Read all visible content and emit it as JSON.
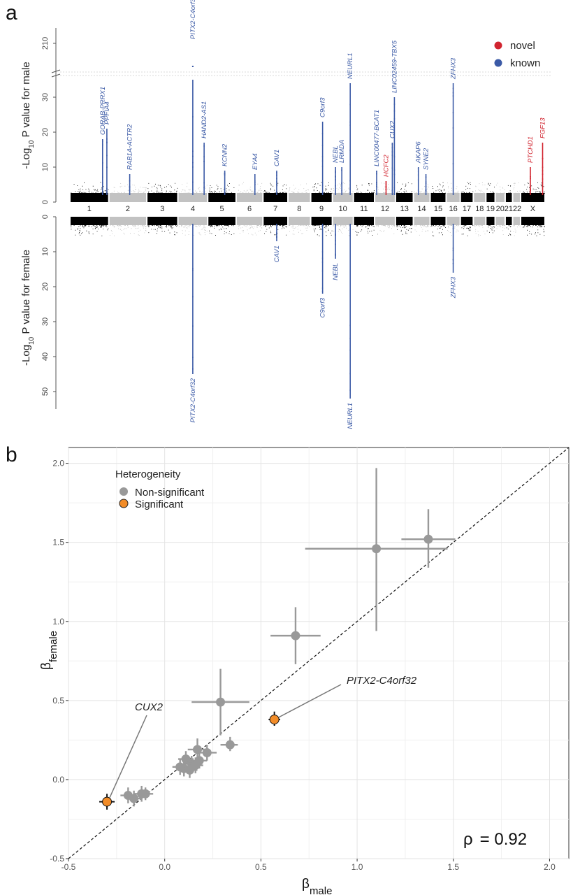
{
  "panels": {
    "a": "a",
    "b": "b"
  },
  "colors": {
    "novel": "#d1242f",
    "known": "#3b5aa6",
    "dark": "#000000",
    "light": "#c2c2c2",
    "nonsig": "#999999",
    "sig": "#f28c28"
  },
  "chart_data": [
    {
      "type": "scatter",
      "subtype": "miami_plot",
      "ylabel_top": "-Log10 P value for male",
      "ylabel_top_parts": {
        "pre": "-Log",
        "sub": "10",
        "post": " P value for male"
      },
      "ylabel_bottom": "-Log10 P value for female",
      "ylabel_bottom_parts": {
        "pre": "-Log",
        "sub": "10",
        "post": " P value for female"
      },
      "top_yticks": [
        "0",
        "10",
        "20",
        "30"
      ],
      "top_break_tick": "210",
      "bottom_yticks": [
        "0",
        "10",
        "20",
        "30",
        "40",
        "50"
      ],
      "ylim_top": [
        0,
        35
      ],
      "ylim_bottom": [
        0,
        55
      ],
      "chromosomes": [
        "1",
        "2",
        "3",
        "4",
        "5",
        "6",
        "7",
        "8",
        "9",
        "10",
        "11",
        "12",
        "13",
        "14",
        "15",
        "16",
        "17",
        "18",
        "19",
        "20",
        "21",
        "22",
        "X"
      ],
      "chromosome_tick_labels": [
        "1",
        "2",
        "3",
        "4",
        "5",
        "6",
        "7",
        "8",
        "9",
        "10",
        "11",
        "12",
        "13",
        "14",
        "15",
        "16",
        "17",
        "18",
        "19",
        "20",
        "2122",
        "X"
      ],
      "legend": {
        "novel": "novel",
        "known": "known",
        "position": "top-right"
      },
      "male_loci": [
        {
          "gene": "GORAB-PRRX1",
          "chr": "1",
          "pos": 0.84,
          "logp": 18,
          "status": "known"
        },
        {
          "gene": "PPFIA4",
          "chr": "1",
          "pos": 0.95,
          "logp": 21,
          "status": "known"
        },
        {
          "gene": "RAB1A-ACTR2",
          "chr": "2",
          "pos": 0.55,
          "logp": 8,
          "status": "known"
        },
        {
          "gene": "PITX2-C4orf32",
          "chr": "4",
          "pos": 0.5,
          "logp": 210,
          "status": "known"
        },
        {
          "gene": "HAND2-AS1",
          "chr": "4",
          "pos": 0.88,
          "logp": 17,
          "status": "known"
        },
        {
          "gene": "KCNN2",
          "chr": "5",
          "pos": 0.6,
          "logp": 9,
          "status": "known"
        },
        {
          "gene": "EYA4",
          "chr": "6",
          "pos": 0.7,
          "logp": 8,
          "status": "known"
        },
        {
          "gene": "CAV1",
          "chr": "7",
          "pos": 0.55,
          "logp": 9,
          "status": "known"
        },
        {
          "gene": "C9orf3",
          "chr": "9",
          "pos": 0.55,
          "logp": 23,
          "status": "known"
        },
        {
          "gene": "NEBL",
          "chr": "10",
          "pos": 0.15,
          "logp": 10,
          "status": "known"
        },
        {
          "gene": "LRMDA",
          "chr": "10",
          "pos": 0.45,
          "logp": 10,
          "status": "known"
        },
        {
          "gene": "NEURL1",
          "chr": "10",
          "pos": 0.85,
          "logp": 34,
          "status": "known"
        },
        {
          "gene": "LINC00477-BCAT1",
          "chr": "12",
          "pos": 0.1,
          "logp": 9,
          "status": "known"
        },
        {
          "gene": "HCFC2",
          "chr": "12",
          "pos": 0.55,
          "logp": 6,
          "status": "novel"
        },
        {
          "gene": "CUX2",
          "chr": "12",
          "pos": 0.85,
          "logp": 17,
          "status": "known"
        },
        {
          "gene": "LINC02459-TBX5",
          "chr": "12",
          "pos": 0.95,
          "logp": 30,
          "status": "known"
        },
        {
          "gene": "AKAP6",
          "chr": "14",
          "pos": 0.3,
          "logp": 10,
          "status": "known"
        },
        {
          "gene": "SYNE2",
          "chr": "14",
          "pos": 0.75,
          "logp": 8,
          "status": "known"
        },
        {
          "gene": "ZFHX3",
          "chr": "16",
          "pos": 0.5,
          "logp": 34,
          "status": "known"
        },
        {
          "gene": "PTCHD1",
          "chr": "X",
          "pos": 0.4,
          "logp": 10,
          "status": "novel"
        },
        {
          "gene": "FGF13",
          "chr": "X",
          "pos": 0.9,
          "logp": 17,
          "status": "novel"
        }
      ],
      "female_loci": [
        {
          "gene": "PITX2-C4orf32",
          "chr": "4",
          "pos": 0.5,
          "logp": 45,
          "status": "known"
        },
        {
          "gene": "CAV1",
          "chr": "7",
          "pos": 0.55,
          "logp": 7,
          "status": "known"
        },
        {
          "gene": "C9orf3",
          "chr": "9",
          "pos": 0.55,
          "logp": 22,
          "status": "known"
        },
        {
          "gene": "NEBL",
          "chr": "10",
          "pos": 0.15,
          "logp": 12,
          "status": "known"
        },
        {
          "gene": "NEURL1",
          "chr": "10",
          "pos": 0.85,
          "logp": 52,
          "status": "known"
        },
        {
          "gene": "ZFHX3",
          "chr": "16",
          "pos": 0.5,
          "logp": 16,
          "status": "known"
        }
      ]
    },
    {
      "type": "scatter",
      "xlabel": "βmale",
      "xlabel_parts": {
        "main": "β",
        "sub": "male"
      },
      "ylabel": "βfemale",
      "ylabel_parts": {
        "main": "β",
        "sub": "female"
      },
      "xlim": [
        -0.5,
        2.1
      ],
      "ylim": [
        -0.5,
        2.1
      ],
      "xticks": [
        "-0.5",
        "0.0",
        "0.5",
        "1.0",
        "1.5",
        "2.0"
      ],
      "yticks": [
        "-0.5",
        "0.0",
        "0.5",
        "1.0",
        "1.5",
        "2.0"
      ],
      "grid": true,
      "identity_line": true,
      "legend": {
        "title": "Heterogeneity",
        "items": [
          "Non-significant",
          "Significant"
        ],
        "position": "top-left"
      },
      "annotation_rho": {
        "label": "ρ",
        "value": "= 0.92"
      },
      "annotations": [
        {
          "text": "CUX2",
          "x": -0.3,
          "y": -0.14
        },
        {
          "text": "PITX2-C4orf32",
          "x": 0.57,
          "y": 0.38
        }
      ],
      "points": [
        {
          "x": 1.37,
          "y": 1.52,
          "xlo": 1.23,
          "xhi": 1.51,
          "ylo": 1.34,
          "yhi": 1.71,
          "sig": false
        },
        {
          "x": 1.1,
          "y": 1.46,
          "xlo": 0.73,
          "xhi": 1.47,
          "ylo": 0.94,
          "yhi": 1.97,
          "sig": false
        },
        {
          "x": 0.68,
          "y": 0.91,
          "xlo": 0.55,
          "xhi": 0.81,
          "ylo": 0.73,
          "yhi": 1.09,
          "sig": false
        },
        {
          "x": 0.29,
          "y": 0.49,
          "xlo": 0.14,
          "xhi": 0.44,
          "ylo": 0.28,
          "yhi": 0.7,
          "sig": false
        },
        {
          "x": 0.57,
          "y": 0.38,
          "xlo": 0.54,
          "xhi": 0.6,
          "ylo": 0.34,
          "yhi": 0.43,
          "sig": true
        },
        {
          "x": 0.34,
          "y": 0.22,
          "xlo": 0.29,
          "xhi": 0.38,
          "ylo": 0.18,
          "yhi": 0.27,
          "sig": false
        },
        {
          "x": 0.22,
          "y": 0.17,
          "xlo": 0.16,
          "xhi": 0.27,
          "ylo": 0.12,
          "yhi": 0.22,
          "sig": false
        },
        {
          "x": 0.17,
          "y": 0.19,
          "xlo": 0.12,
          "xhi": 0.21,
          "ylo": 0.13,
          "yhi": 0.26,
          "sig": false
        },
        {
          "x": 0.11,
          "y": 0.13,
          "xlo": 0.07,
          "xhi": 0.15,
          "ylo": 0.08,
          "yhi": 0.18,
          "sig": false
        },
        {
          "x": 0.14,
          "y": 0.1,
          "xlo": 0.1,
          "xhi": 0.18,
          "ylo": 0.05,
          "yhi": 0.15,
          "sig": false
        },
        {
          "x": 0.1,
          "y": 0.07,
          "xlo": 0.06,
          "xhi": 0.14,
          "ylo": 0.02,
          "yhi": 0.12,
          "sig": false
        },
        {
          "x": 0.18,
          "y": 0.12,
          "xlo": 0.14,
          "xhi": 0.22,
          "ylo": 0.07,
          "yhi": 0.17,
          "sig": false
        },
        {
          "x": 0.13,
          "y": 0.06,
          "xlo": 0.09,
          "xhi": 0.17,
          "ylo": 0.01,
          "yhi": 0.11,
          "sig": false
        },
        {
          "x": 0.16,
          "y": 0.09,
          "xlo": 0.12,
          "xhi": 0.2,
          "ylo": 0.04,
          "yhi": 0.14,
          "sig": false
        },
        {
          "x": 0.08,
          "y": 0.08,
          "xlo": 0.04,
          "xhi": 0.12,
          "ylo": 0.03,
          "yhi": 0.13,
          "sig": false
        },
        {
          "x": -0.1,
          "y": -0.09,
          "xlo": -0.14,
          "xhi": -0.06,
          "ylo": -0.13,
          "yhi": -0.05,
          "sig": false
        },
        {
          "x": -0.12,
          "y": -0.09,
          "xlo": -0.16,
          "xhi": -0.08,
          "ylo": -0.14,
          "yhi": -0.04,
          "sig": false
        },
        {
          "x": -0.19,
          "y": -0.1,
          "xlo": -0.23,
          "xhi": -0.15,
          "ylo": -0.15,
          "yhi": -0.05,
          "sig": false
        },
        {
          "x": -0.16,
          "y": -0.12,
          "xlo": -0.2,
          "xhi": -0.12,
          "ylo": -0.17,
          "yhi": -0.07,
          "sig": false
        },
        {
          "x": -0.3,
          "y": -0.14,
          "xlo": -0.34,
          "xhi": -0.26,
          "ylo": -0.19,
          "yhi": -0.09,
          "sig": true
        }
      ]
    }
  ]
}
